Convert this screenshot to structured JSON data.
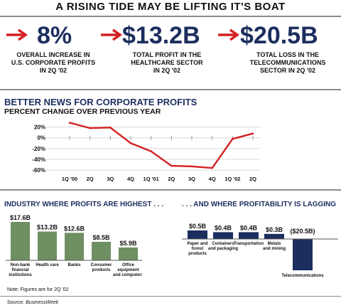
{
  "header": {
    "title": "A RISING TIDE MAY BE LIFTING IT'S BOAT"
  },
  "stats": [
    {
      "value": "8%",
      "desc_lines": [
        "OVERALL INCREASE IN",
        "U.S. CORPORATE PROFITS",
        "IN 2Q '02"
      ]
    },
    {
      "value": "$13.2B",
      "desc_lines": [
        "TOTAL PROFIT IN THE",
        "HEALTHCARE SECTOR",
        "IN 2Q '02"
      ]
    },
    {
      "value": "$20.5B",
      "desc_lines": [
        "TOTAL LOSS IN THE",
        "TELECOMMUNICATIONS",
        "SECTOR IN 2Q '02"
      ]
    }
  ],
  "colors": {
    "navy": "#1c2e5e",
    "red": "#d42020",
    "green": "#6e8f62",
    "grid": "#d8d8d8"
  },
  "chart_data": [
    {
      "type": "line",
      "title": "BETTER NEWS FOR CORPORATE PROFITS",
      "subtitle": "PERCENT CHANGE OVER PREVIOUS YEAR",
      "x": [
        "1Q '00",
        "2Q",
        "3Q",
        "4Q",
        "1Q '01",
        "2Q",
        "3Q",
        "4Q",
        "1Q '02",
        "2Q"
      ],
      "series": [
        {
          "values": [
            28,
            18,
            19,
            -10,
            -25,
            -52,
            -53,
            -56,
            -2,
            8
          ]
        }
      ],
      "ylim": [
        -65,
        30
      ],
      "yticks": [
        20,
        0,
        -20,
        -40,
        -60
      ],
      "ytick_labels": [
        "20%",
        "0%",
        "-20%",
        "-40%",
        "-60%"
      ],
      "grid": true
    },
    {
      "type": "bar",
      "title": "INDUSTRY WHERE PROFITS ARE HIGHEST . . .",
      "categories": [
        [
          "Non-bank",
          "financial",
          "institutions"
        ],
        [
          "Health care"
        ],
        [
          "Banks"
        ],
        [
          "Consumer",
          "products"
        ],
        [
          "Office",
          "equipment",
          "and computers"
        ]
      ],
      "values": [
        17.6,
        13.2,
        12.6,
        8.5,
        5.9
      ],
      "value_labels": [
        "$17.6B",
        "$13.2B",
        "$12.6B",
        "$8.5B",
        "$5.9B"
      ],
      "ylim": [
        0,
        17.6
      ]
    },
    {
      "type": "bar",
      "title": ". . . AND WHERE PROFITABILITY IS LAGGING",
      "categories": [
        [
          "Paper and",
          "forest",
          "products"
        ],
        [
          "Containers",
          "and packaging"
        ],
        [
          "Transportation"
        ],
        [
          "Metals",
          "and mining"
        ],
        [
          "Telecommunications"
        ]
      ],
      "values": [
        0.5,
        0.4,
        0.4,
        0.3,
        -20.5
      ],
      "value_labels": [
        "$0.5B",
        "$0.4B",
        "$0.4B",
        "$0.3B",
        "($20.5B)"
      ]
    }
  ],
  "footer": {
    "note": "Note: Figures are for 2Q '02",
    "source_label": "Source:",
    "source_name": "BusinessWeek"
  }
}
